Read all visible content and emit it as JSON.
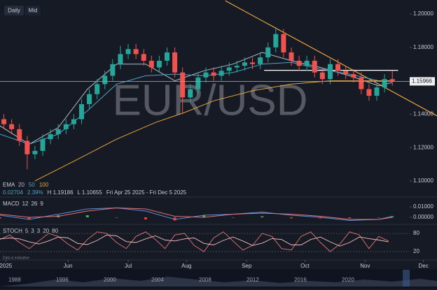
{
  "buttons": [
    "Daily",
    "Mid"
  ],
  "footnote": "Data is indicative",
  "navigator": {
    "labels": [
      "1988",
      "1996",
      "2000",
      "2004",
      "2008",
      "2012",
      "2016",
      "2020"
    ]
  },
  "chart_data": [
    {
      "type": "candlestick",
      "title": "EUR/USD",
      "x": [
        2,
        6,
        10,
        14,
        18,
        22,
        26,
        30,
        34,
        38,
        42,
        46,
        50,
        54,
        58,
        62,
        66,
        70,
        74,
        78,
        82,
        86,
        90,
        94,
        98,
        102,
        106,
        110,
        114,
        118,
        122,
        126,
        130,
        134,
        138,
        142,
        146,
        150,
        154,
        158,
        162,
        166,
        170,
        174,
        178,
        182,
        186,
        190,
        194,
        198,
        202
      ],
      "open": [
        1.137,
        1.134,
        1.131,
        1.124,
        1.116,
        1.118,
        1.125,
        1.128,
        1.131,
        1.134,
        1.137,
        1.146,
        1.152,
        1.158,
        1.163,
        1.17,
        1.176,
        1.179,
        1.176,
        1.172,
        1.168,
        1.172,
        1.177,
        1.165,
        1.15,
        1.155,
        1.162,
        1.165,
        1.163,
        1.166,
        1.168,
        1.169,
        1.171,
        1.17,
        1.174,
        1.18,
        1.188,
        1.177,
        1.172,
        1.169,
        1.172,
        1.165,
        1.161,
        1.17,
        1.166,
        1.164,
        1.162,
        1.155,
        1.151,
        1.156,
        1.161
      ],
      "high": [
        1.14,
        1.137,
        1.134,
        1.127,
        1.121,
        1.128,
        1.131,
        1.134,
        1.137,
        1.14,
        1.149,
        1.155,
        1.161,
        1.166,
        1.173,
        1.181,
        1.182,
        1.182,
        1.179,
        1.175,
        1.175,
        1.18,
        1.18,
        1.168,
        1.158,
        1.165,
        1.168,
        1.168,
        1.169,
        1.171,
        1.172,
        1.174,
        1.174,
        1.177,
        1.183,
        1.192,
        1.191,
        1.18,
        1.175,
        1.175,
        1.175,
        1.168,
        1.173,
        1.173,
        1.169,
        1.167,
        1.165,
        1.158,
        1.159,
        1.164,
        1.166
      ],
      "low": [
        1.131,
        1.128,
        1.121,
        1.107,
        1.113,
        1.115,
        1.122,
        1.125,
        1.128,
        1.131,
        1.134,
        1.143,
        1.149,
        1.155,
        1.16,
        1.167,
        1.173,
        1.173,
        1.169,
        1.165,
        1.165,
        1.169,
        1.162,
        1.14,
        1.147,
        1.152,
        1.159,
        1.16,
        1.16,
        1.163,
        1.165,
        1.166,
        1.167,
        1.167,
        1.171,
        1.177,
        1.174,
        1.169,
        1.166,
        1.166,
        1.162,
        1.158,
        1.158,
        1.163,
        1.161,
        1.159,
        1.152,
        1.148,
        1.148,
        1.153,
        1.157
      ],
      "close": [
        1.134,
        1.131,
        1.124,
        1.116,
        1.118,
        1.125,
        1.128,
        1.131,
        1.134,
        1.137,
        1.146,
        1.152,
        1.158,
        1.163,
        1.17,
        1.176,
        1.179,
        1.176,
        1.172,
        1.168,
        1.172,
        1.177,
        1.165,
        1.15,
        1.155,
        1.162,
        1.165,
        1.163,
        1.166,
        1.168,
        1.169,
        1.171,
        1.17,
        1.174,
        1.18,
        1.188,
        1.177,
        1.172,
        1.169,
        1.172,
        1.165,
        1.161,
        1.17,
        1.166,
        1.164,
        1.162,
        1.155,
        1.151,
        1.156,
        1.161,
        1.1597
      ],
      "up_color": "#26a69a",
      "down_color": "#ef5350",
      "xlim": [
        0,
        225
      ],
      "xticks": [
        {
          "value": 3,
          "label": "2025"
        },
        {
          "value": 35,
          "label": "Jun"
        },
        {
          "value": 66,
          "label": "Jul"
        },
        {
          "value": 96,
          "label": "Aug"
        },
        {
          "value": 127,
          "label": "Sep"
        },
        {
          "value": 157,
          "label": "Oct"
        },
        {
          "value": 188,
          "label": "Nov"
        },
        {
          "value": 218,
          "label": "Dec"
        }
      ],
      "ylim": [
        1.0962,
        1.2084
      ],
      "yticks": [
        {
          "value": 1.1,
          "label": "1.10000"
        },
        {
          "value": 1.12,
          "label": "1.12000"
        },
        {
          "value": 1.14,
          "label": "1.14000"
        },
        {
          "value": 1.16,
          "label": "1.16000"
        },
        {
          "value": 1.18,
          "label": "1.18000"
        },
        {
          "value": 1.2,
          "label": "1.20000"
        }
      ],
      "indicator_label": "EMA",
      "overlays": [
        {
          "name": "20",
          "color": "#b0bec5",
          "x": [
            0,
            15,
            30,
            45,
            60,
            75,
            90,
            105,
            120,
            135,
            150,
            165,
            180,
            195,
            202
          ],
          "values": [
            1.133,
            1.122,
            1.132,
            1.155,
            1.17,
            1.17,
            1.16,
            1.166,
            1.17,
            1.177,
            1.172,
            1.168,
            1.163,
            1.157,
            1.159
          ]
        },
        {
          "name": "50",
          "color": "#4fa3c7",
          "x": [
            0,
            15,
            30,
            45,
            60,
            75,
            90,
            105,
            120,
            135,
            150,
            165,
            180,
            195,
            202
          ],
          "values": [
            1.128,
            1.122,
            1.128,
            1.142,
            1.158,
            1.163,
            1.164,
            1.163,
            1.165,
            1.17,
            1.171,
            1.167,
            1.164,
            1.16,
            1.16
          ]
        },
        {
          "name": "100",
          "color": "#e8a33d",
          "x": [
            18,
            40,
            60,
            80,
            95,
            110,
            130,
            150,
            170,
            190,
            202
          ],
          "values": [
            1.1,
            1.113,
            1.125,
            1.135,
            1.141,
            1.148,
            1.154,
            1.158,
            1.16,
            1.16,
            1.16
          ]
        }
      ],
      "trendline": {
        "color": "#e8a33d",
        "x": [
          116,
          225
        ],
        "values": [
          1.208,
          1.139
        ]
      },
      "resistance": {
        "color": "#ffffff",
        "x": [
          136,
          205
        ],
        "values": [
          1.1663,
          1.1663
        ]
      },
      "last_price": {
        "value": 1.15966,
        "label": "1.15966"
      },
      "info": [
        "0.02704",
        "2.39%",
        "H 1.19186",
        "L 1.10655",
        "Fri Apr 25 2025 - Fri Dec 5 2025"
      ]
    },
    {
      "type": "macd",
      "title": "MACD",
      "parameters": [
        12,
        26,
        9
      ],
      "x": [
        0,
        15,
        30,
        45,
        60,
        75,
        90,
        105,
        120,
        135,
        150,
        165,
        180,
        195,
        202
      ],
      "series": [
        {
          "color": "#5b8fd9",
          "values": [
            0.002,
            -0.002,
            0.003,
            0.008,
            0.009,
            0.006,
            -0.002,
            0.002,
            0.003,
            0.005,
            0.002,
            0.0,
            -0.003,
            -0.002,
            0.001
          ]
        },
        {
          "color": "#e57373",
          "values": [
            0.003,
            0.0,
            0.001,
            0.006,
            0.009,
            0.008,
            0.001,
            0.0,
            0.003,
            0.004,
            0.003,
            0.001,
            -0.002,
            -0.002,
            0.0
          ]
        }
      ],
      "histogram": {
        "up_color": "#4caf50",
        "down_color": "#e53935",
        "values": [
          -0.001,
          -0.002,
          0.002,
          0.002,
          0,
          -0.002,
          -0.003,
          0.002,
          0,
          0.001,
          -0.001,
          -0.001,
          -0.001,
          0,
          0.001
        ]
      },
      "ylim": [
        -0.00467,
        0.01867
      ],
      "yticks": [
        {
          "value": 0.01,
          "label": "0.01000"
        },
        {
          "value": 0,
          "label": "0.00000"
        }
      ]
    },
    {
      "type": "stochastic",
      "title": "STOCH",
      "parameters": [
        5,
        3,
        3,
        20,
        80
      ],
      "x": [
        0,
        5,
        10,
        15,
        20,
        25,
        30,
        35,
        40,
        45,
        50,
        55,
        60,
        65,
        70,
        75,
        80,
        85,
        90,
        95,
        100,
        105,
        110,
        115,
        120,
        125,
        130,
        135,
        140,
        145,
        150,
        155,
        160,
        165,
        170,
        175,
        180,
        185,
        190,
        195,
        200
      ],
      "series": [
        {
          "color": "#e57373",
          "values": [
            60,
            75,
            50,
            30,
            55,
            80,
            70,
            45,
            25,
            60,
            85,
            80,
            50,
            30,
            70,
            85,
            60,
            30,
            75,
            80,
            40,
            20,
            65,
            85,
            55,
            25,
            40,
            80,
            70,
            30,
            25,
            70,
            85,
            50,
            20,
            45,
            85,
            75,
            30,
            70,
            55
          ]
        },
        {
          "color": "#f3c1c1",
          "values": [
            62,
            65,
            62,
            52,
            45,
            55,
            68,
            65,
            47,
            43,
            57,
            75,
            72,
            53,
            50,
            62,
            72,
            58,
            55,
            62,
            65,
            47,
            42,
            57,
            68,
            55,
            40,
            48,
            63,
            60,
            42,
            42,
            60,
            68,
            52,
            38,
            50,
            68,
            63,
            58,
            52
          ]
        }
      ],
      "ylim": [
        8.5,
        100.8
      ],
      "yticks": [
        20,
        80
      ]
    }
  ]
}
